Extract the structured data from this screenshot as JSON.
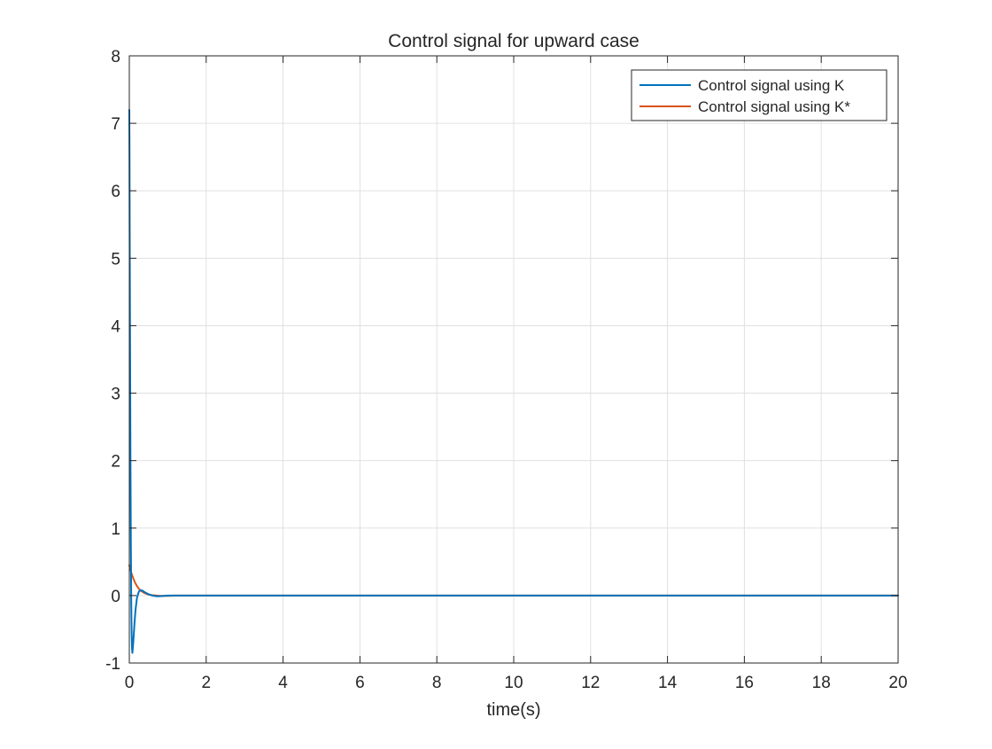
{
  "chart_data": {
    "type": "line",
    "title": "Control signal for upward case",
    "xlabel": "time(s)",
    "ylabel": "",
    "xlim": [
      0,
      20
    ],
    "ylim": [
      -1,
      8
    ],
    "xticks": [
      0,
      2,
      4,
      6,
      8,
      10,
      12,
      14,
      16,
      18,
      20
    ],
    "yticks": [
      -1,
      0,
      1,
      2,
      3,
      4,
      5,
      6,
      7,
      8
    ],
    "grid": true,
    "legend_position": "top-right",
    "series": [
      {
        "name": "Control signal using K",
        "color": "#0072BD",
        "x": [
          0,
          0.005,
          0.01,
          0.02,
          0.03,
          0.04,
          0.05,
          0.06,
          0.07,
          0.08,
          0.1,
          0.13,
          0.16,
          0.2,
          0.25,
          0.3,
          0.35,
          0.4,
          0.5,
          0.6,
          0.7,
          0.8,
          1.0,
          1.2,
          1.5,
          2,
          4,
          6,
          8,
          10,
          12,
          14,
          16,
          18,
          20
        ],
        "y": [
          7.2,
          6.5,
          5.4,
          3.6,
          2.0,
          0.8,
          -0.1,
          -0.55,
          -0.78,
          -0.85,
          -0.72,
          -0.45,
          -0.22,
          -0.03,
          0.06,
          0.08,
          0.07,
          0.05,
          0.02,
          0.0,
          -0.01,
          -0.01,
          0.0,
          0.0,
          0.0,
          0.0,
          0.0,
          0.0,
          0.0,
          0.0,
          0.0,
          0.0,
          0.0,
          0.0,
          0.0
        ]
      },
      {
        "name": "Control signal using K*",
        "color": "#D95319",
        "x": [
          0,
          0.05,
          0.1,
          0.15,
          0.2,
          0.25,
          0.3,
          0.4,
          0.5,
          0.6,
          0.7,
          0.8,
          1.0,
          1.2,
          1.5,
          2,
          4,
          6,
          8,
          10,
          12,
          14,
          16,
          18,
          20
        ],
        "y": [
          0.45,
          0.34,
          0.26,
          0.19,
          0.14,
          0.1,
          0.07,
          0.035,
          0.015,
          0.005,
          0.0,
          -0.005,
          -0.005,
          0.0,
          0.0,
          0.0,
          0.0,
          0.0,
          0.0,
          0.0,
          0.0,
          0.0,
          0.0,
          0.0,
          0.0
        ]
      }
    ]
  }
}
